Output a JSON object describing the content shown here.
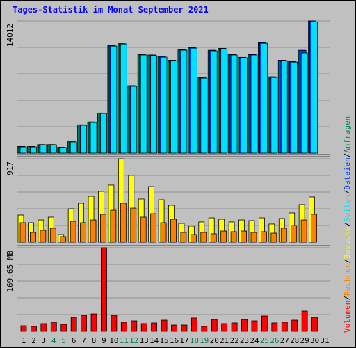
{
  "chart_data": [
    {
      "type": "bar",
      "title": "Tages-Statistik im Monat September 2021",
      "ylim": [
        0,
        14012
      ],
      "yticks": [
        14012
      ],
      "series": [
        {
          "name": "Anfragen",
          "color": "#00805c",
          "values": [
            700,
            700,
            900,
            900,
            620,
            1300,
            3000,
            3300,
            4250,
            11400,
            11600,
            7150,
            10450,
            10400,
            10250,
            9850,
            10950,
            11200,
            8000,
            10900,
            11100,
            10450,
            10150,
            10450,
            11700,
            8100,
            9850,
            9700,
            10900,
            14012,
            null
          ]
        },
        {
          "name": "Dateien",
          "color": "#0040ff",
          "values": [
            700,
            700,
            900,
            900,
            620,
            1300,
            3000,
            3300,
            4250,
            11400,
            11600,
            7150,
            10450,
            10400,
            10250,
            9850,
            10950,
            11200,
            8000,
            10900,
            11100,
            10450,
            10150,
            10450,
            11700,
            8100,
            9850,
            9700,
            10900,
            14012,
            null
          ]
        },
        {
          "name": "Seiten",
          "color": "#00e0ff",
          "values": [
            660,
            660,
            880,
            880,
            590,
            1180,
            2950,
            3240,
            4200,
            11350,
            11570,
            7080,
            10400,
            10320,
            10170,
            9800,
            10910,
            11130,
            7960,
            10840,
            11060,
            10400,
            10100,
            10400,
            11640,
            8030,
            9800,
            9650,
            10620,
            13900,
            null
          ]
        }
      ]
    },
    {
      "type": "bar",
      "ylim": [
        0,
        917
      ],
      "yticks": [
        917
      ],
      "series": [
        {
          "name": "Besuche",
          "color": "#ffff00",
          "values": [
            298,
            214,
            244,
            275,
            84,
            367,
            428,
            504,
            558,
            627,
            917,
            734,
            474,
            611,
            466,
            405,
            206,
            176,
            222,
            267,
            252,
            222,
            244,
            237,
            267,
            199,
            260,
            321,
            413,
            497,
            null
          ]
        },
        {
          "name": "Rechner",
          "color": "#ff8000",
          "values": [
            214,
            107,
            130,
            153,
            61,
            229,
            214,
            244,
            306,
            351,
            428,
            374,
            275,
            313,
            214,
            252,
            107,
            84,
            107,
            92,
            122,
            115,
            122,
            107,
            115,
            99,
            153,
            183,
            244,
            306,
            null
          ]
        }
      ]
    },
    {
      "type": "bar",
      "ylim": [
        0,
        169.65
      ],
      "yticks": [
        {
          "value": 169.65,
          "label": "169.65 MB"
        }
      ],
      "series": [
        {
          "name": "Volumen",
          "color": "#ff0000",
          "values": [
            11.3,
            9.9,
            15.6,
            18.4,
            14.1,
            28.3,
            32.5,
            35.3,
            169.65,
            32.5,
            18.4,
            21.2,
            15.6,
            17.0,
            22.6,
            12.7,
            12.7,
            26.9,
            9.9,
            24.0,
            15.6,
            17.0,
            24.0,
            21.2,
            31.1,
            17.0,
            18.4,
            22.6,
            41.0,
            28.3,
            null
          ]
        }
      ],
      "categories": [
        "1",
        "2",
        "3",
        "4",
        "5",
        "6",
        "7",
        "8",
        "9",
        "10",
        "11",
        "12",
        "13",
        "14",
        "15",
        "16",
        "17",
        "18",
        "19",
        "20",
        "21",
        "22",
        "23",
        "24",
        "25",
        "26",
        "27",
        "28",
        "29",
        "30",
        "31"
      ],
      "category_colors": [
        "#000000",
        "#000000",
        "#000000",
        "#00805c",
        "#00805c",
        "#000000",
        "#000000",
        "#000000",
        "#000000",
        "#000000",
        "#00805c",
        "#00805c",
        "#000000",
        "#000000",
        "#000000",
        "#000000",
        "#000000",
        "#00805c",
        "#00805c",
        "#000000",
        "#000000",
        "#000000",
        "#000000",
        "#000000",
        "#00805c",
        "#00805c",
        "#000000",
        "#000000",
        "#000000",
        "#000000",
        "#000000"
      ]
    }
  ]
}
